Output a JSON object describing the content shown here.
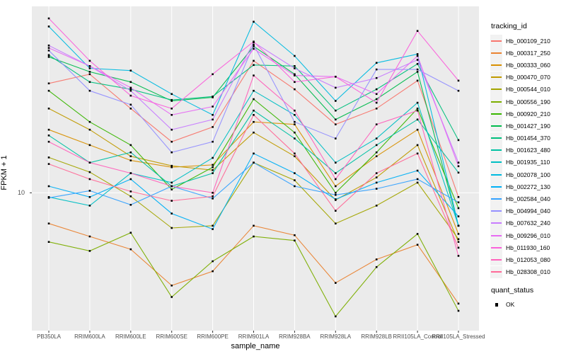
{
  "axes": {
    "x_title": "sample_name",
    "y_title": "FPKM + 1",
    "y_tick_labels": [
      "10"
    ]
  },
  "legend": {
    "tracking_title": "tracking_id",
    "quant_title": "quant_status",
    "quant_items": [
      {
        "label": "OK"
      }
    ]
  },
  "style": {
    "panel_bg": "#EBEBEB",
    "grid_color": "#FFFFFF",
    "axis_text_color": "#4d4d4d",
    "point_color": "#000000",
    "legend_key_bg": "#F2F2F2"
  },
  "chart_data": {
    "type": "line",
    "xlabel": "sample_name",
    "ylabel": "FPKM + 1",
    "y_scale": "log10",
    "ylim": [
      1.35,
      150
    ],
    "y_ticks": [
      10
    ],
    "grid": true,
    "legend_position": "right",
    "point_shape": "filled-square",
    "quant_status": "OK",
    "samples": [
      "PB350LA",
      "RRIM600LA",
      "RRIM600LE",
      "RRIM600SE",
      "RRIM600PE",
      "RRIM901LA",
      "RRIM928BA",
      "RRIM928LA",
      "RRIM928LB",
      "RRII105LA_Control",
      "RRII105LA_Stressed"
    ],
    "series": [
      {
        "tracking_id": "Hb_000109_210",
        "color": "#F8766D",
        "values": [
          49,
          56,
          34,
          21,
          26,
          68,
          45,
          27,
          34,
          51,
          9.4
        ]
      },
      {
        "tracking_id": "Hb_000317_250",
        "color": "#EA8331",
        "values": [
          6.4,
          5.3,
          4.4,
          2.6,
          3.2,
          6.2,
          5.4,
          2.7,
          3.8,
          4.7,
          2.0
        ]
      },
      {
        "tracking_id": "Hb_000333_060",
        "color": "#D89000",
        "values": [
          25,
          20,
          16,
          14.5,
          15,
          28,
          27,
          11,
          17,
          25,
          5.5
        ]
      },
      {
        "tracking_id": "Hb_000470_070",
        "color": "#C09B00",
        "values": [
          34,
          25,
          17,
          14.8,
          13.9,
          24,
          17,
          9,
          12.5,
          20,
          4.9
        ]
      },
      {
        "tracking_id": "Hb_000544_010",
        "color": "#A3A500",
        "values": [
          16.7,
          13.5,
          9.5,
          6,
          6.2,
          15.5,
          12,
          6.4,
          8.3,
          11.6,
          5.1
        ]
      },
      {
        "tracking_id": "Hb_000556_190",
        "color": "#7CAE00",
        "values": [
          4.9,
          4.3,
          5.6,
          2.2,
          3.7,
          5.3,
          5.0,
          1.66,
          3.4,
          5.5,
          1.8
        ]
      },
      {
        "tracking_id": "Hb_000920_210",
        "color": "#39B600",
        "values": [
          44,
          28,
          20,
          10.5,
          14.5,
          39,
          24,
          10,
          18,
          34,
          8.0
        ]
      },
      {
        "tracking_id": "Hb_001427_190",
        "color": "#00BB4E",
        "values": [
          72,
          58,
          50,
          38,
          40,
          84,
          56,
          29,
          39,
          58,
          6.2
        ]
      },
      {
        "tracking_id": "Hb_001454_370",
        "color": "#00BF7D",
        "values": [
          74,
          50,
          45,
          38.5,
          40.5,
          64,
          63,
          33,
          45,
          65,
          21.5
        ]
      },
      {
        "tracking_id": "Hb_001623_480",
        "color": "#00C1A3",
        "values": [
          23,
          15.5,
          18,
          11,
          13.3,
          33,
          22,
          13.3,
          20,
          29,
          13.4
        ]
      },
      {
        "tracking_id": "Hb_001935_110",
        "color": "#00BFC4",
        "values": [
          9.4,
          8.3,
          13.3,
          11.6,
          16.6,
          44,
          31,
          15.5,
          22,
          37,
          6.2
        ]
      },
      {
        "tracking_id": "Hb_002078_100",
        "color": "#00BAE0",
        "values": [
          112,
          61,
          59,
          42,
          31,
          120,
          73,
          38,
          66,
          75,
          6.2
        ]
      },
      {
        "tracking_id": "Hb_002272_130",
        "color": "#00B0F6",
        "values": [
          11,
          9.4,
          12.2,
          7.4,
          5.9,
          17.7,
          13.3,
          9.1,
          11.6,
          13.8,
          7.1
        ]
      },
      {
        "tracking_id": "Hb_002584_040",
        "color": "#35A2FF",
        "values": [
          9.3,
          10.3,
          8.4,
          11,
          9.2,
          15.5,
          11,
          9.7,
          10.6,
          12.2,
          8.7
        ]
      },
      {
        "tracking_id": "Hb_004994_040",
        "color": "#9590FF",
        "values": [
          79,
          44,
          36,
          18,
          21,
          86,
          28,
          22,
          60,
          60,
          44
        ]
      },
      {
        "tracking_id": "Hb_007632_240",
        "color": "#C77CFF",
        "values": [
          85,
          63,
          44,
          25,
          29,
          89,
          61,
          46,
          53,
          69,
          15.5
        ]
      },
      {
        "tracking_id": "Hb_009296_010",
        "color": "#E76BF3",
        "values": [
          82,
          63,
          46,
          31,
          35,
          81,
          55,
          54,
          42,
          73,
          14.7
        ]
      },
      {
        "tracking_id": "Hb_011930_160",
        "color": "#FA62DB",
        "values": [
          126,
          68,
          41,
          34,
          56,
          90,
          50,
          54,
          37,
          105,
          51
        ]
      },
      {
        "tracking_id": "Hb_012053_080",
        "color": "#FF62BC",
        "values": [
          21,
          15.5,
          13.3,
          11,
          10,
          55,
          33,
          12.2,
          27,
          33,
          4.0
        ]
      },
      {
        "tracking_id": "Hb_028308_010",
        "color": "#FF6A98",
        "values": [
          15.2,
          12.2,
          10.2,
          8.9,
          9.5,
          31,
          17.7,
          7.7,
          13.3,
          17.7,
          4.5
        ]
      }
    ]
  }
}
